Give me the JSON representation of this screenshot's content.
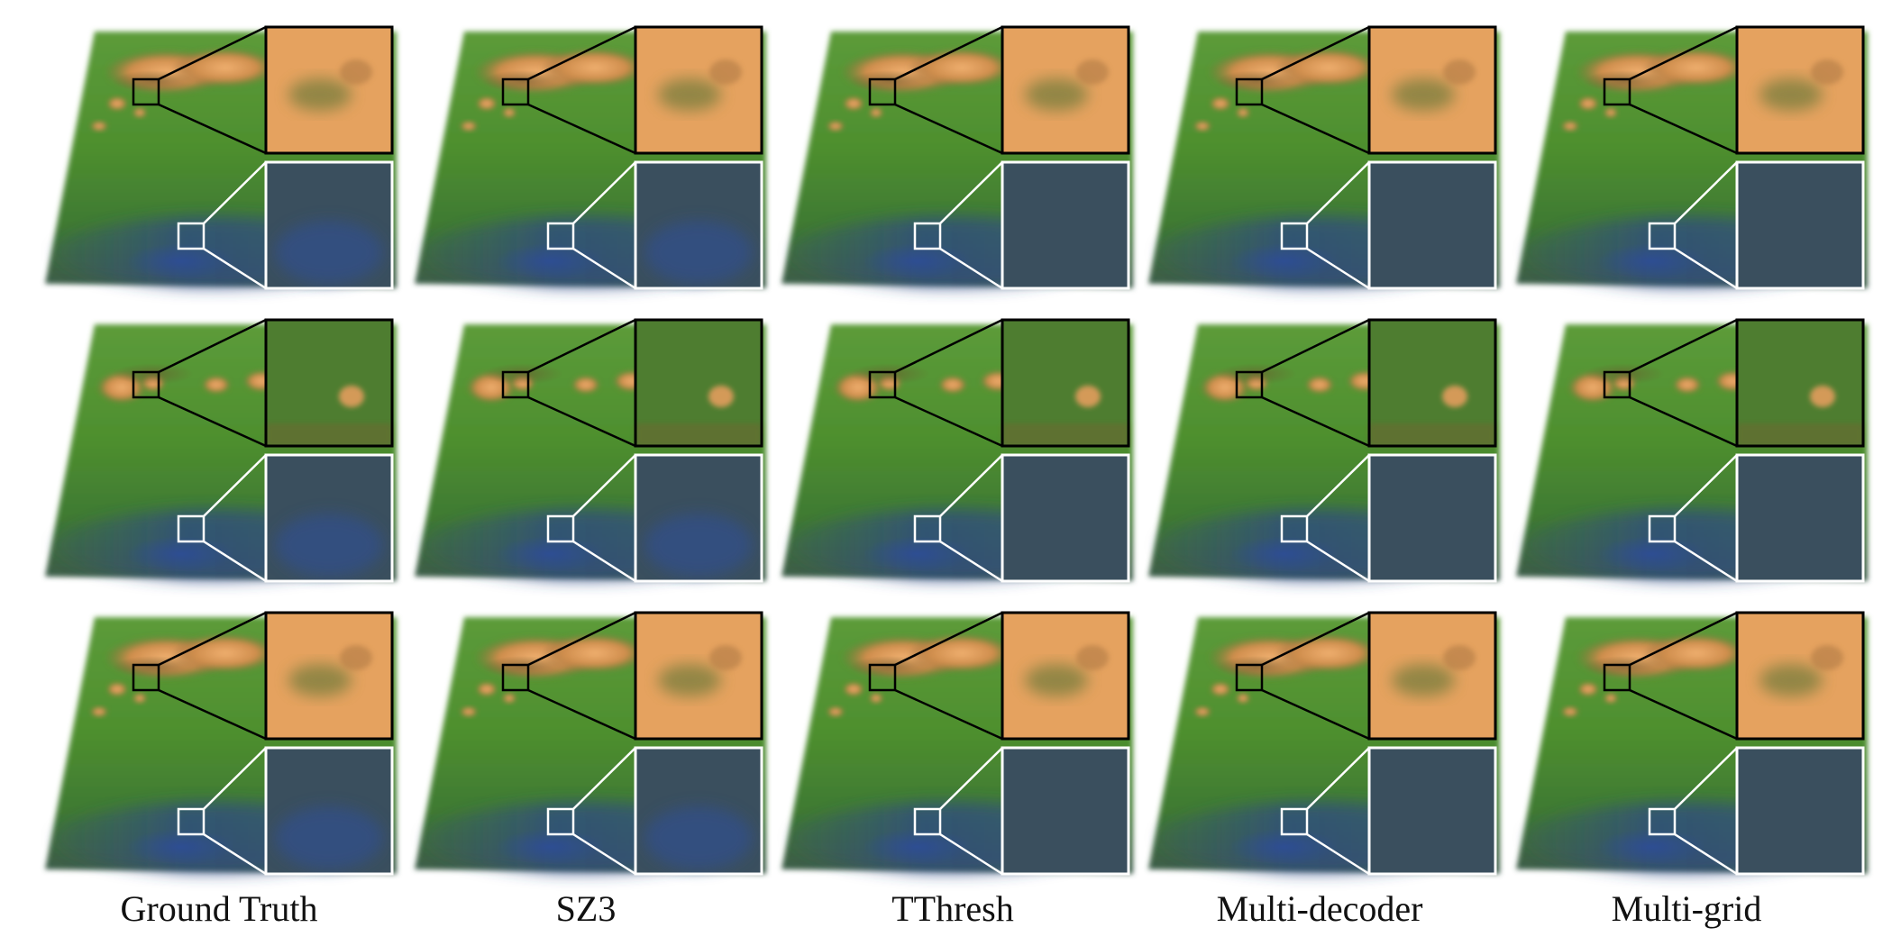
{
  "figure": {
    "columns": [
      {
        "label": "Ground Truth",
        "method": "ground-truth"
      },
      {
        "label": "SZ3",
        "method": "sz3"
      },
      {
        "label": "TThresh",
        "method": "tthresh"
      },
      {
        "label": "Multi-decoder",
        "method": "multi-decoder"
      },
      {
        "label": "Multi-grid",
        "method": "multi-grid"
      }
    ],
    "row_count": 3,
    "colors": {
      "field_green": "#4f8f2e",
      "feature_orange": "#e8a964",
      "region_blue": "#2f4a86",
      "zoom_top_frame": "#000000",
      "zoom_bottom_frame": "#ffffff"
    }
  }
}
